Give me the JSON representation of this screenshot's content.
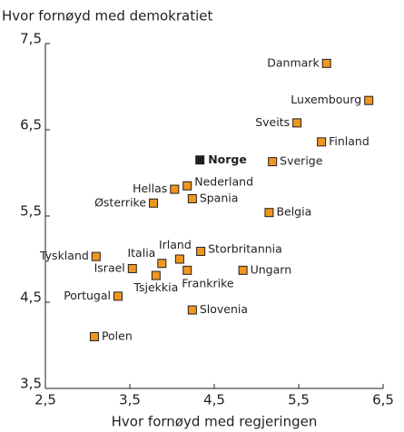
{
  "chart_data": {
    "type": "scatter",
    "title": "Hvor fornøyd med demokratiet",
    "x_label": "Hvor fornøyd med regjeringen",
    "xlim": [
      2.5,
      6.5
    ],
    "ylim": [
      3.5,
      7.5
    ],
    "xticks": [
      {
        "value": 2.5,
        "label": "2,5"
      },
      {
        "value": 3.5,
        "label": "3,5"
      },
      {
        "value": 4.5,
        "label": "4,5"
      },
      {
        "value": 5.5,
        "label": "5,5"
      },
      {
        "value": 6.5,
        "label": "6,5"
      }
    ],
    "yticks": [
      {
        "value": 3.5,
        "label": "3,5"
      },
      {
        "value": 4.5,
        "label": "4,5"
      },
      {
        "value": 5.5,
        "label": "5,5"
      },
      {
        "value": 6.5,
        "label": "6,5"
      },
      {
        "value": 7.5,
        "label": "7,5"
      }
    ],
    "points": [
      {
        "label": "Danmark",
        "x": 5.83,
        "y": 7.27,
        "color": "#f0961e"
      },
      {
        "label": "Luxembourg",
        "x": 6.33,
        "y": 6.84,
        "color": "#f0961e"
      },
      {
        "label": "Sveits",
        "x": 5.48,
        "y": 6.58,
        "color": "#f0961e"
      },
      {
        "label": "Finland",
        "x": 5.77,
        "y": 6.36,
        "color": "#f0961e"
      },
      {
        "label": "Norge",
        "x": 4.33,
        "y": 6.15,
        "color": "#231f20"
      },
      {
        "label": "Sverige",
        "x": 5.19,
        "y": 6.13,
        "color": "#f0961e"
      },
      {
        "label": "Nederland",
        "x": 4.18,
        "y": 5.85,
        "color": "#f0961e"
      },
      {
        "label": "Hellas",
        "x": 4.03,
        "y": 5.81,
        "color": "#f0961e"
      },
      {
        "label": "Spania",
        "x": 4.24,
        "y": 5.7,
        "color": "#f0961e"
      },
      {
        "label": "Østerrike",
        "x": 3.78,
        "y": 5.65,
        "color": "#f0961e"
      },
      {
        "label": "Belgia",
        "x": 5.15,
        "y": 5.54,
        "color": "#f0961e"
      },
      {
        "label": "Tyskland",
        "x": 3.1,
        "y": 5.03,
        "color": "#f0961e"
      },
      {
        "label": "Storbritannia",
        "x": 4.34,
        "y": 5.09,
        "color": "#f0961e"
      },
      {
        "label": "Irland",
        "x": 4.09,
        "y": 5.0,
        "color": "#f0961e"
      },
      {
        "label": "Italia",
        "x": 3.88,
        "y": 4.95,
        "color": "#f0961e"
      },
      {
        "label": "Israel",
        "x": 3.53,
        "y": 4.89,
        "color": "#f0961e"
      },
      {
        "label": "Ungarn",
        "x": 4.84,
        "y": 4.87,
        "color": "#f0961e"
      },
      {
        "label": "Frankrike",
        "x": 4.18,
        "y": 4.87,
        "color": "#f0961e"
      },
      {
        "label": "Tsjekkia",
        "x": 3.81,
        "y": 4.81,
        "color": "#f0961e"
      },
      {
        "label": "Portugal",
        "x": 3.36,
        "y": 4.57,
        "color": "#f0961e"
      },
      {
        "label": "Slovenia",
        "x": 4.24,
        "y": 4.41,
        "color": "#f0961e"
      },
      {
        "label": "Polen",
        "x": 3.08,
        "y": 4.1,
        "color": "#f0961e"
      }
    ]
  }
}
